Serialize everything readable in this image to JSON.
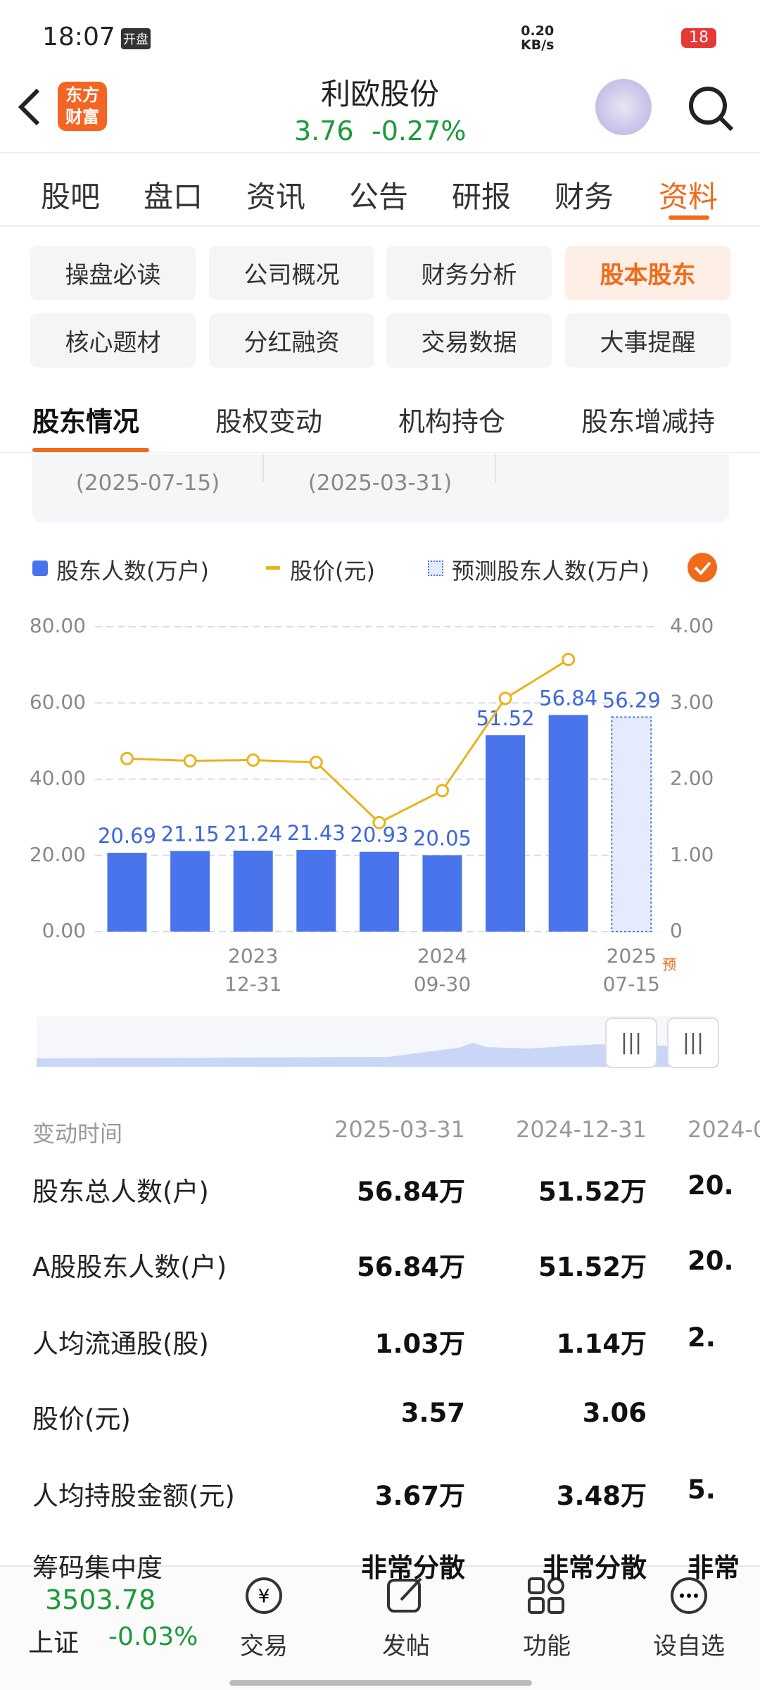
{
  "status_bar": {
    "time": "18:07",
    "badge": "开盘",
    "net_speed": "0.20",
    "net_unit": "KB/s",
    "battery": "18"
  },
  "header": {
    "logo_top": "东方",
    "logo_bottom": "财富",
    "title": "利欧股份",
    "price": "3.76",
    "change": "-0.27%"
  },
  "tabs": [
    "股吧",
    "盘口",
    "资讯",
    "公告",
    "研报",
    "财务",
    "资料"
  ],
  "sub_tabs": [
    "操盘必读",
    "公司概况",
    "财务分析",
    "股本股东",
    "核心题材",
    "分红融资",
    "交易数据",
    "大事提醒"
  ],
  "section_tabs": [
    "股东情况",
    "股权变动",
    "机构持仓",
    "股东增减持"
  ],
  "summary_dates": [
    "(2025-07-15)",
    "(2025-03-31)"
  ],
  "chart_data": {
    "type": "bar",
    "categories": [
      null,
      null,
      "2023\n12-31",
      null,
      null,
      "2024\n09-30",
      null,
      null,
      "2025\n07-15"
    ],
    "series": [
      {
        "name": "股东人数(万户)",
        "type": "bar",
        "color": "#4a74ec",
        "values": [
          20.69,
          21.15,
          21.24,
          21.43,
          20.93,
          20.05,
          51.52,
          56.84,
          null
        ]
      },
      {
        "name": "股价(元)",
        "type": "line",
        "axis": "y2",
        "color": "#e9b31c",
        "values": [
          2.27,
          2.24,
          2.25,
          2.22,
          1.43,
          1.85,
          3.06,
          3.57,
          null
        ]
      },
      {
        "name": "预测股东人数(万户)",
        "type": "bar",
        "style": "dashed",
        "color": "#4a74ec",
        "values": [
          null,
          null,
          null,
          null,
          null,
          null,
          null,
          null,
          56.29
        ]
      }
    ],
    "ylim": [
      0,
      80
    ],
    "yticks": [
      {
        "value": 0,
        "label": "0.00"
      },
      {
        "value": 20,
        "label": "20.00"
      },
      {
        "value": 40,
        "label": "40.00"
      },
      {
        "value": 60,
        "label": "60.00"
      },
      {
        "value": 80,
        "label": "80.00"
      }
    ],
    "y2lim": [
      0,
      4
    ],
    "y2ticks": [
      0,
      {
        "value": 1,
        "label": "1.00"
      },
      {
        "value": 2,
        "label": "2.00"
      },
      {
        "value": 3,
        "label": "3.00"
      },
      {
        "value": 4,
        "label": "4.00"
      }
    ],
    "grid": true,
    "annotation": "预"
  },
  "table": {
    "header": [
      "变动时间",
      "2025-03-31",
      "2024-12-31",
      "2024-0"
    ],
    "rows": [
      [
        "股东总人数(户)",
        "56.84万",
        "51.52万",
        "20."
      ],
      [
        "A股股东人数(户)",
        "56.84万",
        "51.52万",
        "20."
      ],
      [
        "人均流通股(股)",
        "1.03万",
        "1.14万",
        "2."
      ],
      [
        "股价(元)",
        "3.57",
        "3.06",
        ""
      ],
      [
        "人均持股金额(元)",
        "3.67万",
        "3.48万",
        "5."
      ],
      [
        "筹码集中度",
        "非常分散",
        "非常分散",
        "非常"
      ]
    ]
  },
  "bottom_bar": {
    "index_value": "3503.78",
    "index_name": "上证",
    "index_change": "-0.03%",
    "actions": [
      "交易",
      "发帖",
      "功能",
      "设自选"
    ]
  }
}
